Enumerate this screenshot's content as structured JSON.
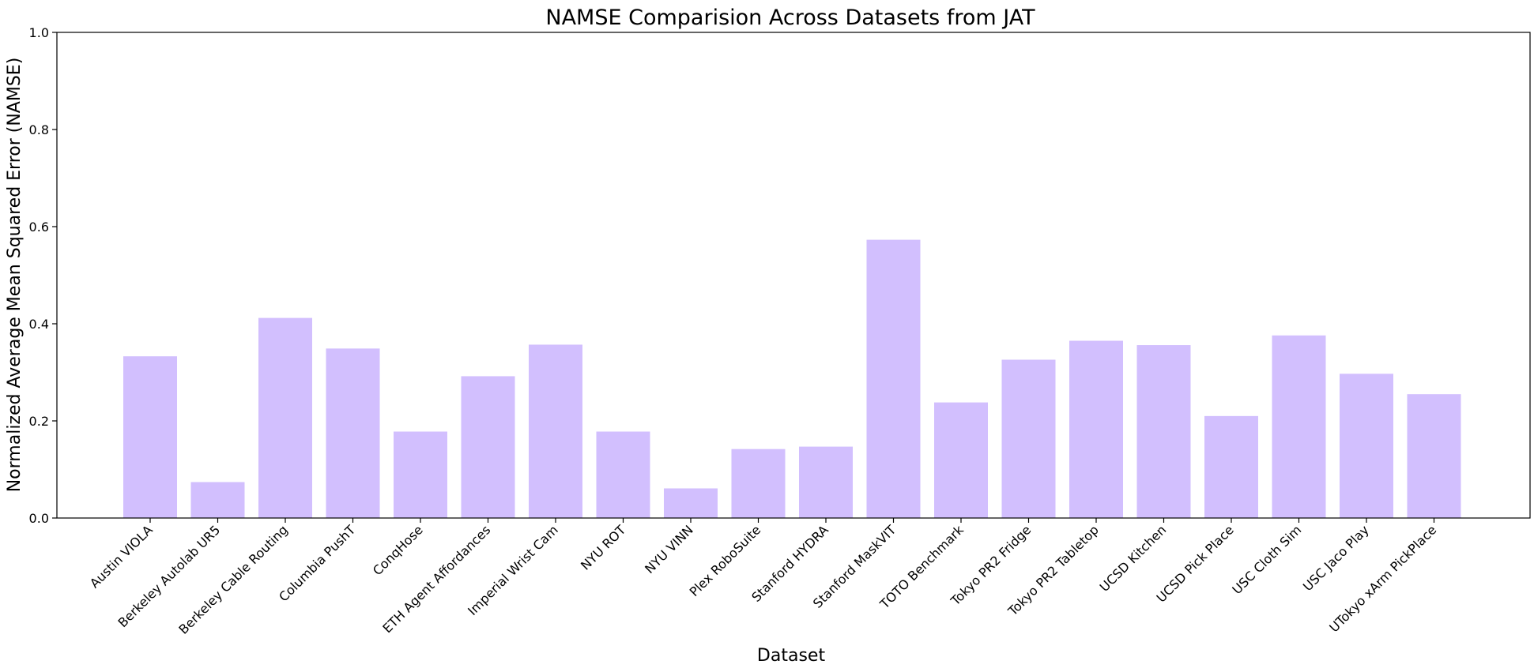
{
  "chart_data": {
    "type": "bar",
    "title": "NAMSE Comparision Across Datasets from JAT",
    "xlabel": "Dataset",
    "ylabel": "Normalized Average Mean Squared Error (NAMSE)",
    "ylim": [
      0,
      1.0
    ],
    "yticks": [
      "0.0",
      "0.2",
      "0.4",
      "0.6",
      "0.8",
      "1.0"
    ],
    "grid": false,
    "bar_color": "#d2bffe",
    "categories": [
      "Austin VIOLA",
      "Berkeley Autolab UR5",
      "Berkeley Cable Routing",
      "Columbia PushT",
      "ConqHose",
      "ETH Agent Affordances",
      "Imperial Wrist Cam",
      "NYU ROT",
      "NYU VINN",
      "Plex RoboSuite",
      "Stanford HYDRA",
      "Stanford MaskVIT",
      "TOTO Benchmark",
      "Tokyo PR2 Fridge",
      "Tokyo PR2 Tabletop",
      "UCSD Kitchen",
      "UCSD Pick Place",
      "USC Cloth Sim",
      "USC Jaco Play",
      "UTokyo xArm PickPlace"
    ],
    "values": [
      0.333,
      0.074,
      0.412,
      0.349,
      0.178,
      0.292,
      0.357,
      0.178,
      0.061,
      0.142,
      0.147,
      0.573,
      0.238,
      0.326,
      0.365,
      0.356,
      0.21,
      0.376,
      0.297,
      0.255
    ]
  }
}
